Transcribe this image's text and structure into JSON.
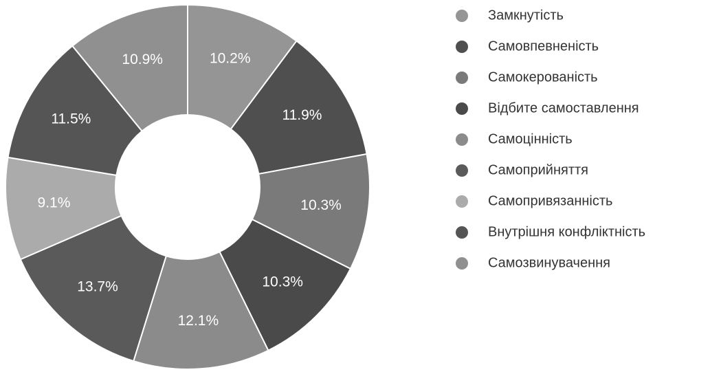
{
  "chart_data": {
    "type": "pie",
    "donut": true,
    "categories": [
      "Замкнутість",
      "Самовпевненість",
      "Самокерованість",
      "Відбите самоставлення",
      "Самоцінність",
      "Самоприйняття",
      "Самопривязанність",
      "Внутрішня конфліктність",
      "Самозвинувачення"
    ],
    "values": [
      10.2,
      11.9,
      10.3,
      10.3,
      12.1,
      13.7,
      9.1,
      11.5,
      10.9
    ],
    "value_labels": [
      "10.2%",
      "11.9%",
      "10.3%",
      "10.3%",
      "12.1%",
      "13.7%",
      "9.1%",
      "11.5%",
      "10.9%"
    ],
    "colors": [
      "#959595",
      "#4f4f4f",
      "#7a7a7a",
      "#4a4a4a",
      "#8b8b8b",
      "#5a5a5a",
      "#ababab",
      "#555555",
      "#909090"
    ],
    "legend": "right"
  }
}
